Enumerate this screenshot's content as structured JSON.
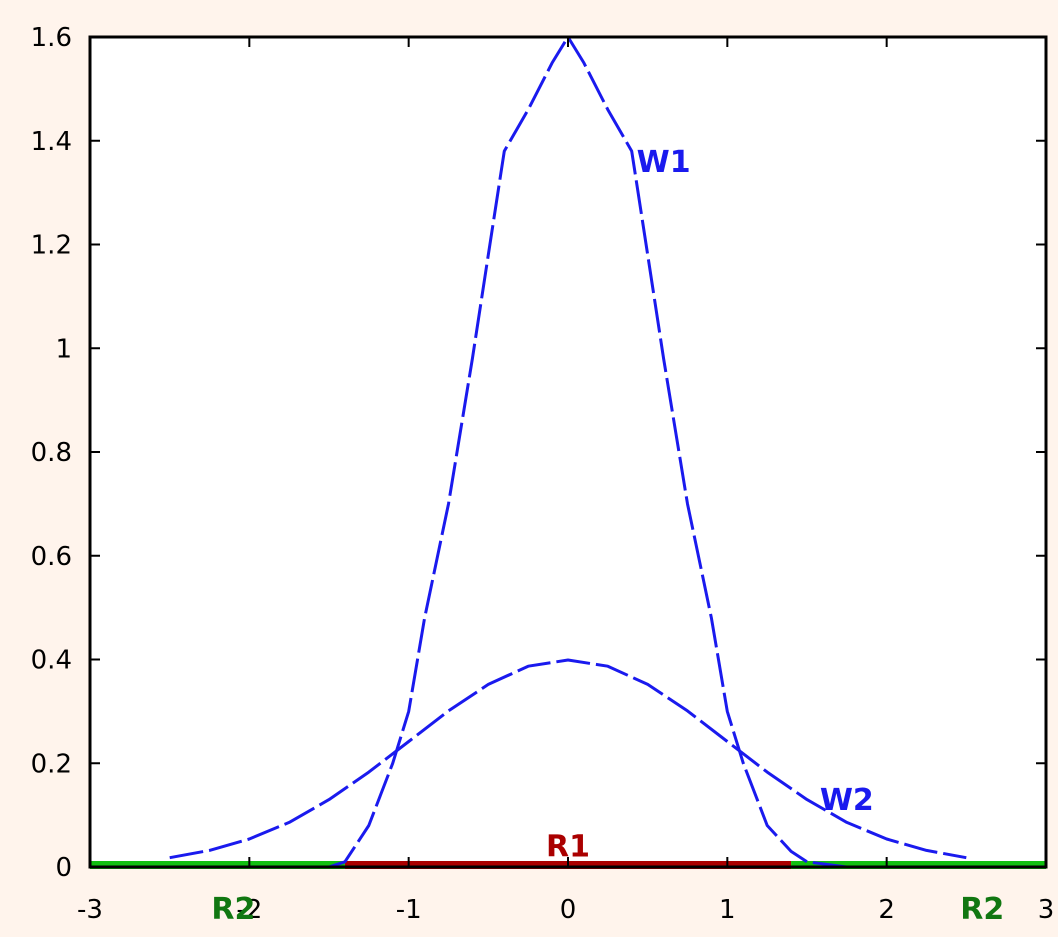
{
  "chart_data": {
    "type": "line",
    "title": "",
    "xlabel": "",
    "ylabel": "",
    "xlim": [
      -3,
      3
    ],
    "ylim": [
      0,
      1.6
    ],
    "grid": false,
    "x_ticks": [
      {
        "value": -3,
        "label": "-3"
      },
      {
        "value": -2,
        "label": "-2"
      },
      {
        "value": -1,
        "label": "-1"
      },
      {
        "value": 0,
        "label": "0"
      },
      {
        "value": 1,
        "label": "1"
      },
      {
        "value": 2,
        "label": "2"
      },
      {
        "value": 3,
        "label": "3"
      }
    ],
    "y_ticks": [
      {
        "value": 0,
        "label": "0"
      },
      {
        "value": 0.2,
        "label": "0.2"
      },
      {
        "value": 0.4,
        "label": "0.4"
      },
      {
        "value": 0.6,
        "label": "0.6"
      },
      {
        "value": 0.8,
        "label": "0.8"
      },
      {
        "value": 1,
        "label": "1"
      },
      {
        "value": 1.2,
        "label": "1.2"
      },
      {
        "value": 1.4,
        "label": "1.4"
      },
      {
        "value": 1.6,
        "label": "1.6"
      }
    ],
    "series": [
      {
        "name": "W1",
        "color": "#1a1aee",
        "x": [
          -2.5,
          -2.25,
          -2.0,
          -1.75,
          -1.5,
          -1.4,
          -1.25,
          -1.1,
          -1.0,
          -0.9,
          -0.75,
          -0.6,
          -0.5,
          -0.4,
          -0.25,
          -0.1,
          0.0,
          0.1,
          0.25,
          0.4,
          0.5,
          0.6,
          0.75,
          0.9,
          1.0,
          1.1,
          1.25,
          1.4,
          1.5,
          1.75,
          2.0,
          2.25,
          2.5
        ],
        "y": [
          0,
          0,
          0,
          0,
          0,
          0.01,
          0.08,
          0.2,
          0.3,
          0.48,
          0.7,
          0.98,
          1.18,
          1.38,
          1.46,
          1.55,
          1.6,
          1.55,
          1.46,
          1.38,
          1.18,
          0.98,
          0.7,
          0.48,
          0.3,
          0.2,
          0.08,
          0.03,
          0.01,
          0,
          0,
          0,
          0
        ]
      },
      {
        "name": "W2",
        "color": "#1a1aee",
        "x": [
          -2.5,
          -2.25,
          -2.0,
          -1.75,
          -1.5,
          -1.25,
          -1.0,
          -0.75,
          -0.5,
          -0.25,
          0.0,
          0.25,
          0.5,
          0.75,
          1.0,
          1.25,
          1.5,
          1.75,
          2.0,
          2.25,
          2.5
        ],
        "y": [
          0.018,
          0.032,
          0.054,
          0.086,
          0.13,
          0.183,
          0.242,
          0.301,
          0.352,
          0.387,
          0.399,
          0.387,
          0.352,
          0.301,
          0.242,
          0.183,
          0.13,
          0.086,
          0.054,
          0.032,
          0.018
        ]
      }
    ],
    "regions": [
      {
        "name": "R2",
        "color": "#10c010",
        "x_start": -3,
        "x_end": -1.4
      },
      {
        "name": "R1",
        "color": "#aa0000",
        "x_start": -1.4,
        "x_end": 1.4
      },
      {
        "name": "R2",
        "color": "#10c010",
        "x_start": 1.4,
        "x_end": 3
      }
    ],
    "annotations": [
      {
        "text": "W1",
        "x": 0.6,
        "y": 1.34,
        "color": "#1a1aee"
      },
      {
        "text": "W2",
        "x": 1.75,
        "y": 0.11,
        "color": "#1a1aee"
      },
      {
        "text": "R1",
        "x": 0.0,
        "y": 0.02,
        "color": "#aa0000"
      },
      {
        "text": "R2",
        "x": -2.1,
        "y": -0.1,
        "color": "#117711"
      },
      {
        "text": "R2",
        "x": 2.6,
        "y": -0.1,
        "color": "#117711"
      }
    ]
  }
}
